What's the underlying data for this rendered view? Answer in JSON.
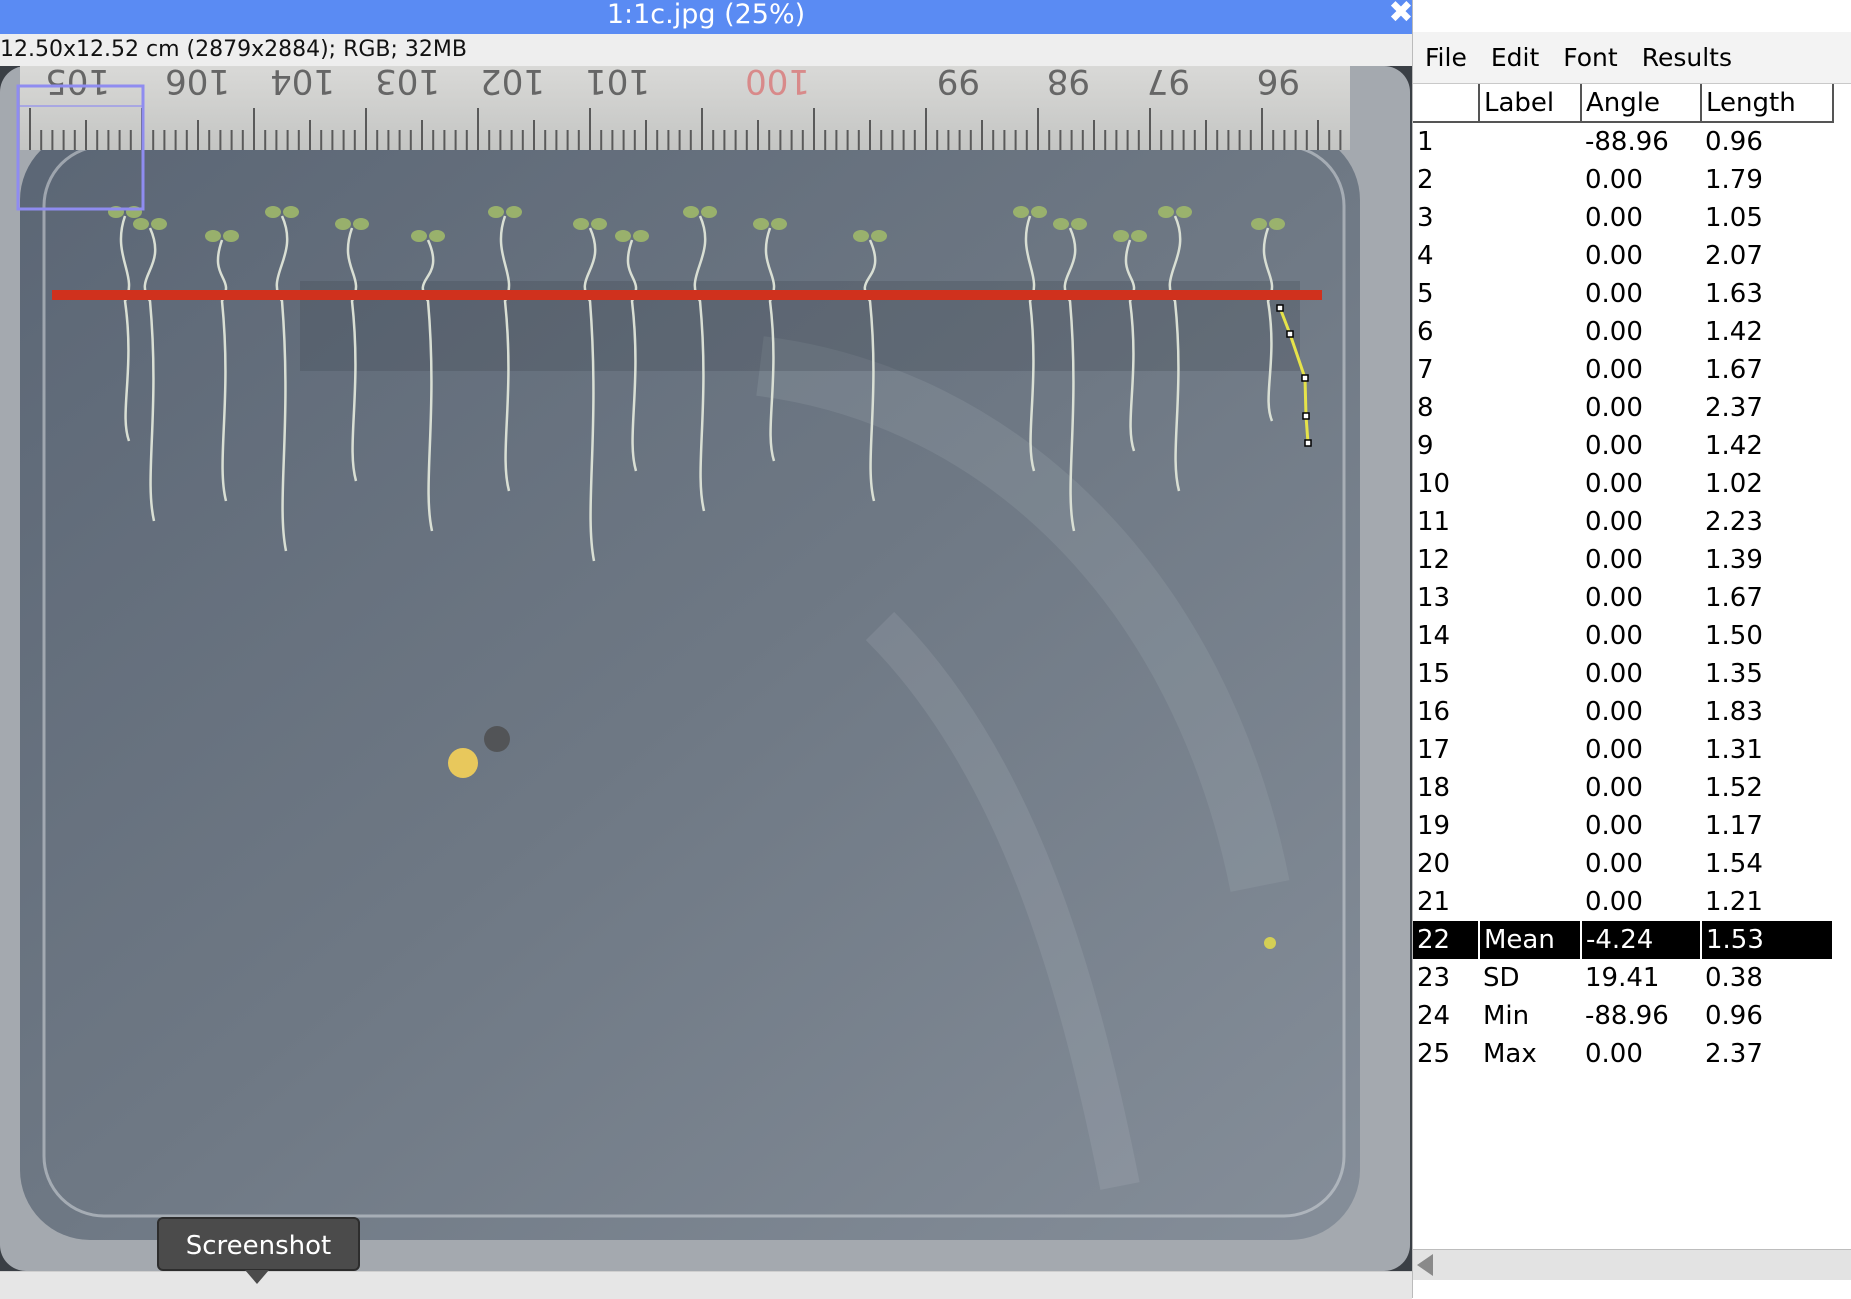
{
  "image_window": {
    "title": "1:1c.jpg (25%)",
    "info": "12.50x12.52 cm (2879x2884); RGB; 32MB",
    "close_icon": "close-icon",
    "ruler_numbers": [
      "105",
      "106",
      "104",
      "103",
      "102",
      "101",
      "100",
      "99",
      "98",
      "97",
      "96"
    ]
  },
  "tooltip": {
    "label": "Screenshot"
  },
  "results_window": {
    "menu": [
      "File",
      "Edit",
      "Font",
      "Results"
    ],
    "columns": [
      "",
      "Label",
      "Angle",
      "Length"
    ],
    "rows": [
      [
        "1",
        "",
        "-88.96",
        "0.96"
      ],
      [
        "2",
        "",
        "0.00",
        "1.79"
      ],
      [
        "3",
        "",
        "0.00",
        "1.05"
      ],
      [
        "4",
        "",
        "0.00",
        "2.07"
      ],
      [
        "5",
        "",
        "0.00",
        "1.63"
      ],
      [
        "6",
        "",
        "0.00",
        "1.42"
      ],
      [
        "7",
        "",
        "0.00",
        "1.67"
      ],
      [
        "8",
        "",
        "0.00",
        "2.37"
      ],
      [
        "9",
        "",
        "0.00",
        "1.42"
      ],
      [
        "10",
        "",
        "0.00",
        "1.02"
      ],
      [
        "11",
        "",
        "0.00",
        "2.23"
      ],
      [
        "12",
        "",
        "0.00",
        "1.39"
      ],
      [
        "13",
        "",
        "0.00",
        "1.67"
      ],
      [
        "14",
        "",
        "0.00",
        "1.50"
      ],
      [
        "15",
        "",
        "0.00",
        "1.35"
      ],
      [
        "16",
        "",
        "0.00",
        "1.83"
      ],
      [
        "17",
        "",
        "0.00",
        "1.31"
      ],
      [
        "18",
        "",
        "0.00",
        "1.52"
      ],
      [
        "19",
        "",
        "0.00",
        "1.17"
      ],
      [
        "20",
        "",
        "0.00",
        "1.54"
      ],
      [
        "21",
        "",
        "0.00",
        "1.21"
      ],
      [
        "22",
        "Mean",
        "-4.24",
        "1.53"
      ],
      [
        "23",
        "SD",
        "19.41",
        "0.38"
      ],
      [
        "24",
        "Min",
        "-88.96",
        "0.96"
      ],
      [
        "25",
        "Max",
        "0.00",
        "2.37"
      ]
    ],
    "selected_row": "22"
  },
  "colors": {
    "titlebar": "#5a8bf3",
    "measure_line": "#d0311d",
    "selection_line": "#e6e34a",
    "roi_rect": "#8f8cf0",
    "selected_row_bg": "#000000"
  }
}
